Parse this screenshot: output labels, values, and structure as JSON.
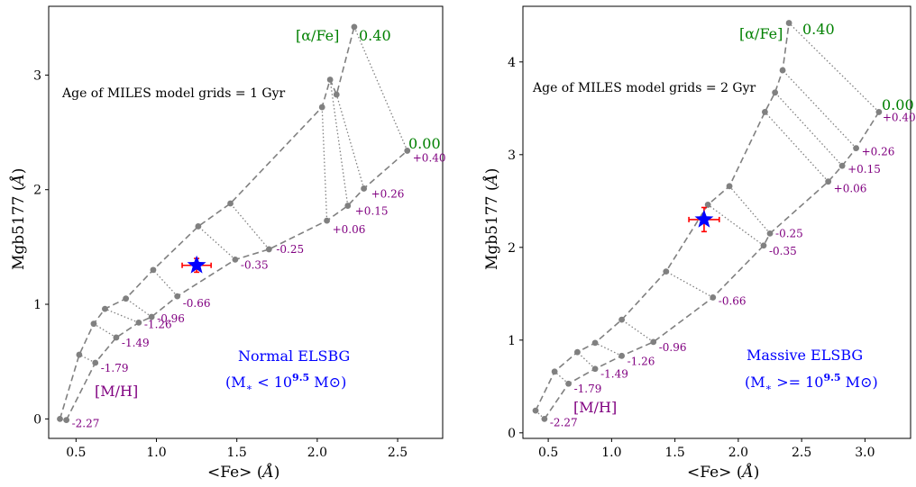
{
  "colors": {
    "grid": "#808080",
    "metallicity_label": "#800080",
    "alpha_label": "#008000",
    "legend": "#0000ff",
    "star": "#0000ff",
    "errorbar": "#ff0000"
  },
  "chart_data": [
    {
      "type": "scatter",
      "model_text": "Age of MILES model grids = 1 Gyr",
      "xlabel": "<Fe> (Å)",
      "ylabel": "Mgb5177 (Å)",
      "xlim": [
        0.33,
        2.78
      ],
      "ylim": [
        -0.17,
        3.6
      ],
      "xticks": [
        0.5,
        1.0,
        1.5,
        2.0,
        2.5
      ],
      "xtick_labels": [
        "0.5",
        "1.0",
        "1.5",
        "2.0",
        "2.5"
      ],
      "yticks": [
        0,
        1,
        2,
        3
      ],
      "ytick_labels": [
        "0",
        "1",
        "2",
        "3"
      ],
      "metallicities": [
        "-2.27",
        "-1.79",
        "-1.49",
        "-1.26",
        "-0.96",
        "-0.66",
        "-0.35",
        "-0.25",
        "+0.06",
        "+0.15",
        "+0.26",
        "+0.40"
      ],
      "alpha_labels": [
        "0.00",
        "0.40"
      ],
      "alpha_title": "[α/Fe]",
      "mh_title": "[M/H]",
      "grid_alpha_000": [
        [
          0.44,
          -0.01
        ],
        [
          0.62,
          0.49
        ],
        [
          0.75,
          0.71
        ],
        [
          0.89,
          0.84
        ],
        [
          0.97,
          0.89
        ],
        [
          1.13,
          1.07
        ],
        [
          1.49,
          1.39
        ],
        [
          1.7,
          1.48
        ],
        [
          2.06,
          1.73
        ],
        [
          2.19,
          1.86
        ],
        [
          2.29,
          2.01
        ],
        [
          2.56,
          2.34
        ]
      ],
      "grid_alpha_040": [
        [
          0.4,
          0.0
        ],
        [
          0.52,
          0.56
        ],
        [
          0.61,
          0.83
        ],
        [
          0.68,
          0.96
        ],
        [
          0.81,
          1.05
        ],
        [
          0.98,
          1.3
        ],
        [
          1.26,
          1.68
        ],
        [
          1.46,
          1.88
        ],
        [
          2.03,
          2.72
        ],
        [
          2.08,
          2.96
        ],
        [
          2.12,
          2.83
        ],
        [
          2.23,
          3.42
        ]
      ],
      "galaxy": {
        "label": "Normal ELSBG",
        "mass_label": "(M* < 10^9.5 M⊙)",
        "fe": 1.25,
        "mgb": 1.34,
        "fe_err": 0.09,
        "mgb_err": 0.06
      }
    },
    {
      "type": "scatter",
      "model_text": "Age of MILES model grids = 2 Gyr",
      "xlabel": "<Fe> (Å)",
      "ylabel": "Mgb5177 (Å)",
      "xlim": [
        0.3,
        3.36
      ],
      "ylim": [
        -0.06,
        4.6
      ],
      "xticks": [
        0.5,
        1.0,
        1.5,
        2.0,
        2.5,
        3.0
      ],
      "xtick_labels": [
        "0.5",
        "1.0",
        "1.5",
        "2.0",
        "2.5",
        "3.0"
      ],
      "yticks": [
        0,
        1,
        2,
        3,
        4
      ],
      "ytick_labels": [
        "0",
        "1",
        "2",
        "3",
        "4"
      ],
      "metallicities": [
        "-2.27",
        "-1.79",
        "-1.49",
        "-1.26",
        "-0.96",
        "-0.66",
        "-0.35",
        "-0.25",
        "+0.06",
        "+0.15",
        "+0.26",
        "+0.40"
      ],
      "alpha_labels": [
        "0.00",
        "0.40"
      ],
      "alpha_title": "[α/Fe]",
      "mh_title": "[M/H]",
      "grid_alpha_000": [
        [
          0.47,
          0.15
        ],
        [
          0.66,
          0.53
        ],
        [
          0.87,
          0.69
        ],
        [
          1.08,
          0.83
        ],
        [
          1.33,
          0.98
        ],
        [
          1.8,
          1.46
        ],
        [
          2.2,
          2.02
        ],
        [
          2.25,
          2.15
        ],
        [
          2.71,
          2.71
        ],
        [
          2.82,
          2.88
        ],
        [
          2.93,
          3.07
        ],
        [
          3.11,
          3.46
        ]
      ],
      "grid_alpha_040": [
        [
          0.4,
          0.24
        ],
        [
          0.55,
          0.66
        ],
        [
          0.73,
          0.87
        ],
        [
          0.87,
          0.97
        ],
        [
          1.08,
          1.22
        ],
        [
          1.43,
          1.74
        ],
        [
          1.76,
          2.46
        ],
        [
          1.93,
          2.66
        ],
        [
          2.21,
          3.46
        ],
        [
          2.29,
          3.67
        ],
        [
          2.35,
          3.91
        ],
        [
          2.4,
          4.42
        ]
      ],
      "galaxy": {
        "label": "Massive ELSBG",
        "mass_label": "(M* >= 10^9.5 M⊙)",
        "fe": 1.73,
        "mgb": 2.3,
        "fe_err": 0.12,
        "mgb_err": 0.13
      }
    }
  ]
}
